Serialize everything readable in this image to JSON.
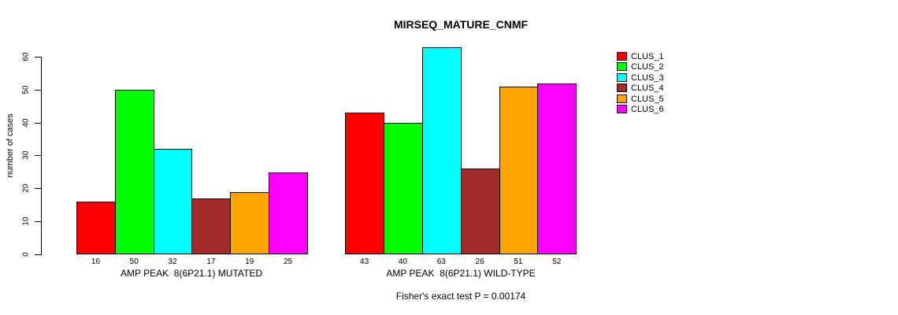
{
  "chart_data": {
    "type": "bar",
    "title": "MIRSEQ_MATURE_CNMF",
    "ylabel": "number of cases",
    "xlabel": "",
    "ylim": [
      0,
      63
    ],
    "yticks": [
      0,
      10,
      20,
      30,
      40,
      50,
      60
    ],
    "grid": false,
    "legend_position": "right-outside",
    "bar_value_labels": true,
    "categories": [
      "AMP PEAK  8(6P21.1) MUTATED",
      "AMP PEAK  8(6P21.1) WILD-TYPE"
    ],
    "series": [
      {
        "name": "CLUS_1",
        "color": "#FF0000",
        "values": [
          16,
          43
        ]
      },
      {
        "name": "CLUS_2",
        "color": "#00FF00",
        "values": [
          50,
          40
        ]
      },
      {
        "name": "CLUS_3",
        "color": "#00FFFF",
        "values": [
          32,
          63
        ]
      },
      {
        "name": "CLUS_4",
        "color": "#A52A2A",
        "values": [
          17,
          26
        ]
      },
      {
        "name": "CLUS_5",
        "color": "#FFA500",
        "values": [
          19,
          51
        ]
      },
      {
        "name": "CLUS_6",
        "color": "#FF00FF",
        "values": [
          25,
          52
        ]
      }
    ],
    "annotation": "Fisher's exact test P = 0.00174"
  },
  "colors": {
    "background": "#FFFFFF",
    "axis": "#000000",
    "text": "#000000"
  }
}
